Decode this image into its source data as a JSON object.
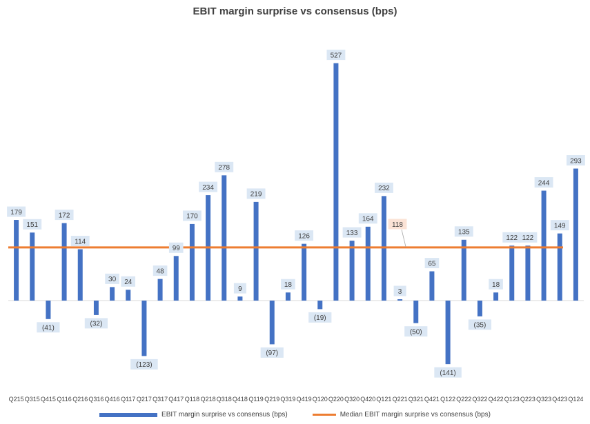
{
  "chart_data": {
    "type": "bar",
    "title": "EBIT margin surprise vs consensus (bps)",
    "categories": [
      "Q215",
      "Q315",
      "Q415",
      "Q116",
      "Q216",
      "Q316",
      "Q416",
      "Q117",
      "Q217",
      "Q317",
      "Q417",
      "Q118",
      "Q218",
      "Q318",
      "Q418",
      "Q119",
      "Q219",
      "Q319",
      "Q419",
      "Q120",
      "Q220",
      "Q320",
      "Q420",
      "Q121",
      "Q221",
      "Q321",
      "Q421",
      "Q122",
      "Q222",
      "Q322",
      "Q422",
      "Q123",
      "Q223",
      "Q323",
      "Q423",
      "Q124"
    ],
    "series": [
      {
        "name": "EBIT margin surprise vs consensus (bps)",
        "type": "bar",
        "color": "#4472C4",
        "values": [
          179,
          151,
          -41,
          172,
          114,
          -32,
          30,
          24,
          -123,
          48,
          99,
          170,
          234,
          278,
          9,
          219,
          -97,
          18,
          126,
          -19,
          527,
          133,
          164,
          232,
          3,
          -50,
          65,
          -141,
          135,
          -35,
          18,
          122,
          122,
          244,
          149,
          293
        ],
        "labels": [
          "179",
          "151",
          "(41)",
          "172",
          "114",
          "(32)",
          "30",
          "24",
          "(123)",
          "48",
          "99",
          "170",
          "234",
          "278",
          "9",
          "219",
          "(97)",
          "18",
          "126",
          "(19)",
          "527",
          "133",
          "164",
          "232",
          "3",
          "(50)",
          "65",
          "(141)",
          "135",
          "(35)",
          "18",
          "122",
          "122",
          "244",
          "149",
          "293"
        ]
      },
      {
        "name": "Median EBIT margin surprise vs consensus (bps)",
        "type": "line",
        "color": "#ED7D31",
        "value": 118,
        "label": "118"
      }
    ],
    "xlabel": "",
    "ylabel": "",
    "ylim": [
      -180,
      560
    ],
    "grid": false,
    "legend": "bottom"
  }
}
